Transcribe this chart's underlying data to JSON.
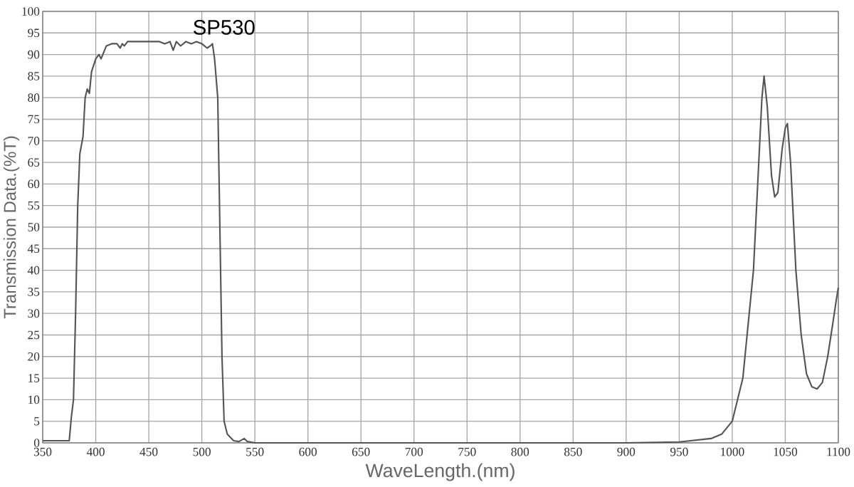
{
  "chart_data": {
    "type": "line",
    "xlabel": "WaveLength.(nm)",
    "ylabel": "Transmission Data.(%T)",
    "series": [
      {
        "color": "#555555",
        "x": [
          350,
          375,
          377,
          379,
          381,
          383,
          385,
          388,
          390,
          392,
          394,
          396,
          400,
          403,
          405,
          410,
          415,
          420,
          423,
          425,
          427,
          430,
          435,
          445,
          460,
          465,
          470,
          473,
          476,
          480,
          485,
          490,
          495,
          500,
          505,
          508,
          510,
          512,
          515,
          517,
          519,
          521,
          524,
          530,
          535,
          540,
          543,
          550,
          600,
          700,
          800,
          900,
          950,
          980,
          990,
          1000,
          1010,
          1020,
          1025,
          1028,
          1030,
          1033,
          1037,
          1040,
          1043,
          1047,
          1050,
          1052,
          1055,
          1060,
          1065,
          1070,
          1075,
          1080,
          1085,
          1090,
          1095,
          1098,
          1100
        ],
        "values": [
          0.5,
          0.5,
          6,
          10,
          30,
          55,
          67,
          71,
          80,
          82,
          81,
          86,
          89,
          90,
          89,
          92,
          92.5,
          92.5,
          91.5,
          92.5,
          92,
          93,
          93,
          93,
          93,
          92.5,
          93,
          91,
          93,
          92,
          93,
          92.5,
          93,
          92.5,
          91.5,
          92,
          92.5,
          89,
          80,
          50,
          20,
          5,
          2,
          0.5,
          0.3,
          1,
          0.3,
          0,
          0,
          0,
          0,
          0,
          0.2,
          1,
          2,
          5,
          15,
          40,
          65,
          80,
          85,
          78,
          62,
          57,
          58,
          68,
          73,
          74,
          65,
          40,
          25,
          16,
          13,
          12.5,
          14,
          20,
          28,
          33,
          36
        ]
      }
    ],
    "annotations": [
      "SP530"
    ],
    "xlim": [
      350,
      1100
    ],
    "ylim": [
      0,
      100
    ],
    "xticks": [
      350,
      400,
      450,
      500,
      550,
      600,
      650,
      700,
      750,
      800,
      850,
      900,
      950,
      1000,
      1050,
      1100
    ],
    "yticks": [
      0,
      5,
      10,
      15,
      20,
      25,
      30,
      35,
      40,
      45,
      50,
      55,
      60,
      65,
      70,
      75,
      80,
      85,
      90,
      95,
      100
    ],
    "grid": true,
    "line_style": "solid",
    "marker": "none"
  }
}
